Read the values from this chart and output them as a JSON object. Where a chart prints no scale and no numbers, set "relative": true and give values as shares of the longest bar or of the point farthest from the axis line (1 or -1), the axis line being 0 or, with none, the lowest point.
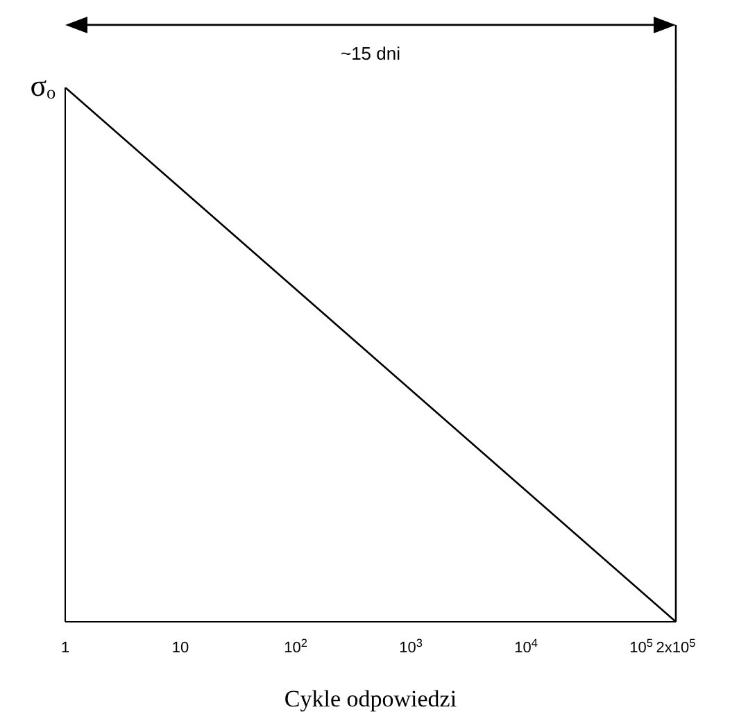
{
  "chart_data": {
    "type": "line",
    "relative": true,
    "log": "x",
    "xlabel": "Cykle odpowiedzi",
    "ylabel": "σₒ",
    "x": [
      1,
      200000
    ],
    "series": [
      {
        "color": "#000000",
        "values": [
          1,
          0
        ]
      }
    ],
    "xlim": [
      1,
      200000
    ],
    "xticks": [
      1,
      10,
      {
        "value": 100,
        "label": "10$^{2}$"
      },
      {
        "value": 1000,
        "label": "10$^{3}$"
      },
      {
        "value": 10000,
        "label": "10$^{4}$"
      },
      {
        "value": 100000,
        "label": "10$^{5}$"
      },
      {
        "value": 200000,
        "label": "2x10$^{5}$"
      }
    ],
    "annotations": [
      "~15 dni"
    ],
    "grid": false,
    "legend": false,
    "marker": "none",
    "line_style": "solid"
  }
}
